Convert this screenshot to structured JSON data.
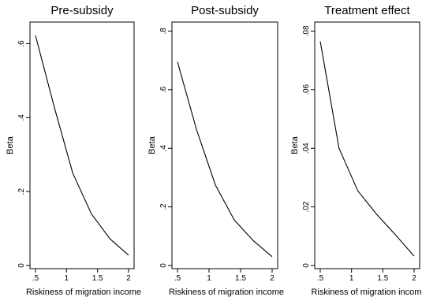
{
  "chart_data": [
    {
      "type": "line",
      "title": "Pre-subsidy",
      "xlabel": "Riskiness of migration income",
      "ylabel": "Beta",
      "xlim": [
        0.5,
        2
      ],
      "ylim": [
        0,
        0.65
      ],
      "xticks": [
        ".5",
        "1",
        "1.5",
        "2"
      ],
      "xtick_values": [
        0.5,
        1,
        1.5,
        2
      ],
      "yticks": [
        "0",
        ".2",
        ".4",
        ".6"
      ],
      "ytick_values": [
        0,
        0.2,
        0.4,
        0.6
      ],
      "x": [
        0.5,
        0.8,
        1.1,
        1.4,
        1.7,
        2.0
      ],
      "y": [
        0.622,
        0.43,
        0.25,
        0.14,
        0.072,
        0.028
      ],
      "grid": false,
      "line_color": "#000000"
    },
    {
      "type": "line",
      "title": "Post-subsidy",
      "xlabel": "Riskiness of migration income",
      "ylabel": "Beta",
      "xlim": [
        0.5,
        2
      ],
      "ylim": [
        0,
        0.82
      ],
      "xticks": [
        ".5",
        "1",
        "1.5",
        "2"
      ],
      "xtick_values": [
        0.5,
        1,
        1.5,
        2
      ],
      "yticks": [
        "0",
        ".2",
        ".4",
        ".6",
        ".8"
      ],
      "ytick_values": [
        0,
        0.2,
        0.4,
        0.6,
        0.8
      ],
      "x": [
        0.5,
        0.8,
        1.1,
        1.4,
        1.7,
        2.0
      ],
      "y": [
        0.695,
        0.465,
        0.275,
        0.155,
        0.085,
        0.03
      ],
      "grid": false,
      "line_color": "#000000"
    },
    {
      "type": "line",
      "title": "Treatment effect",
      "xlabel": "Riskiness of migration income",
      "ylabel": "Beta",
      "xlim": [
        0.5,
        2
      ],
      "ylim": [
        0,
        0.082
      ],
      "xticks": [
        ".5",
        "1",
        "1.5",
        "2"
      ],
      "xtick_values": [
        0.5,
        1,
        1.5,
        2
      ],
      "yticks": [
        "0",
        ".02",
        ".04",
        ".06",
        ".08"
      ],
      "ytick_values": [
        0,
        0.02,
        0.04,
        0.06,
        0.08
      ],
      "x": [
        0.5,
        0.8,
        1.1,
        1.4,
        1.7,
        2.0
      ],
      "y": [
        0.0765,
        0.04,
        0.0255,
        0.0175,
        0.0105,
        0.0032
      ],
      "grid": false,
      "line_color": "#000000"
    }
  ]
}
